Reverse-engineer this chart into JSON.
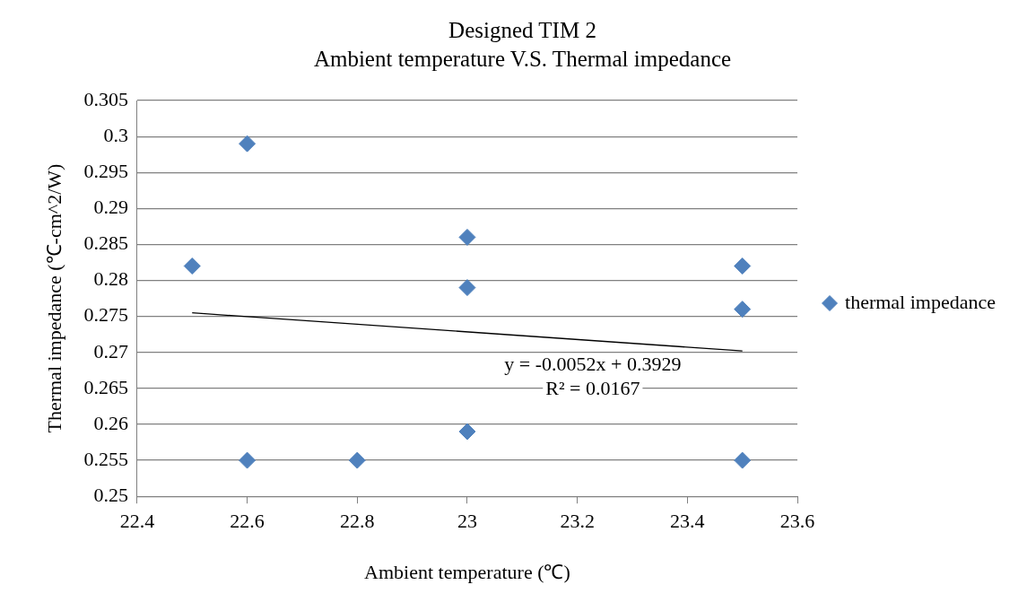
{
  "chart_data": {
    "type": "scatter",
    "title": "Designed TIM 2",
    "subtitle": "Ambient temperature V.S. Thermal impedance",
    "xlabel": "Ambient temperature (℃)",
    "ylabel": "Thermal impedance (℃-cm^2/W)",
    "series": [
      {
        "name": "thermal impedance",
        "color": "#4f81bd",
        "marker": "diamond",
        "x": [
          22.5,
          22.6,
          22.6,
          22.8,
          23,
          23,
          23,
          23.5,
          23.5,
          23.5
        ],
        "values": [
          0.282,
          0.299,
          0.255,
          0.255,
          0.286,
          0.279,
          0.259,
          0.282,
          0.276,
          0.255
        ]
      },
      {
        "type": "line",
        "color": "#000000",
        "marker": "none",
        "x": [
          22.5,
          23.5
        ],
        "values": [
          0.2755,
          0.2702
        ]
      }
    ],
    "xlim": [
      22.4,
      23.6
    ],
    "xticks": [
      22.4,
      22.6,
      22.8,
      23,
      23.2,
      23.4,
      23.6
    ],
    "ylim": [
      0.25,
      0.305
    ],
    "yticks": [
      0.25,
      0.255,
      0.26,
      0.265,
      0.27,
      0.275,
      0.28,
      0.285,
      0.29,
      0.295,
      0.3,
      0.305
    ],
    "grid": "y",
    "legend": "right",
    "annotations": [
      "y = -0.0052x + 0.3929",
      "R² = 0.0167"
    ]
  }
}
